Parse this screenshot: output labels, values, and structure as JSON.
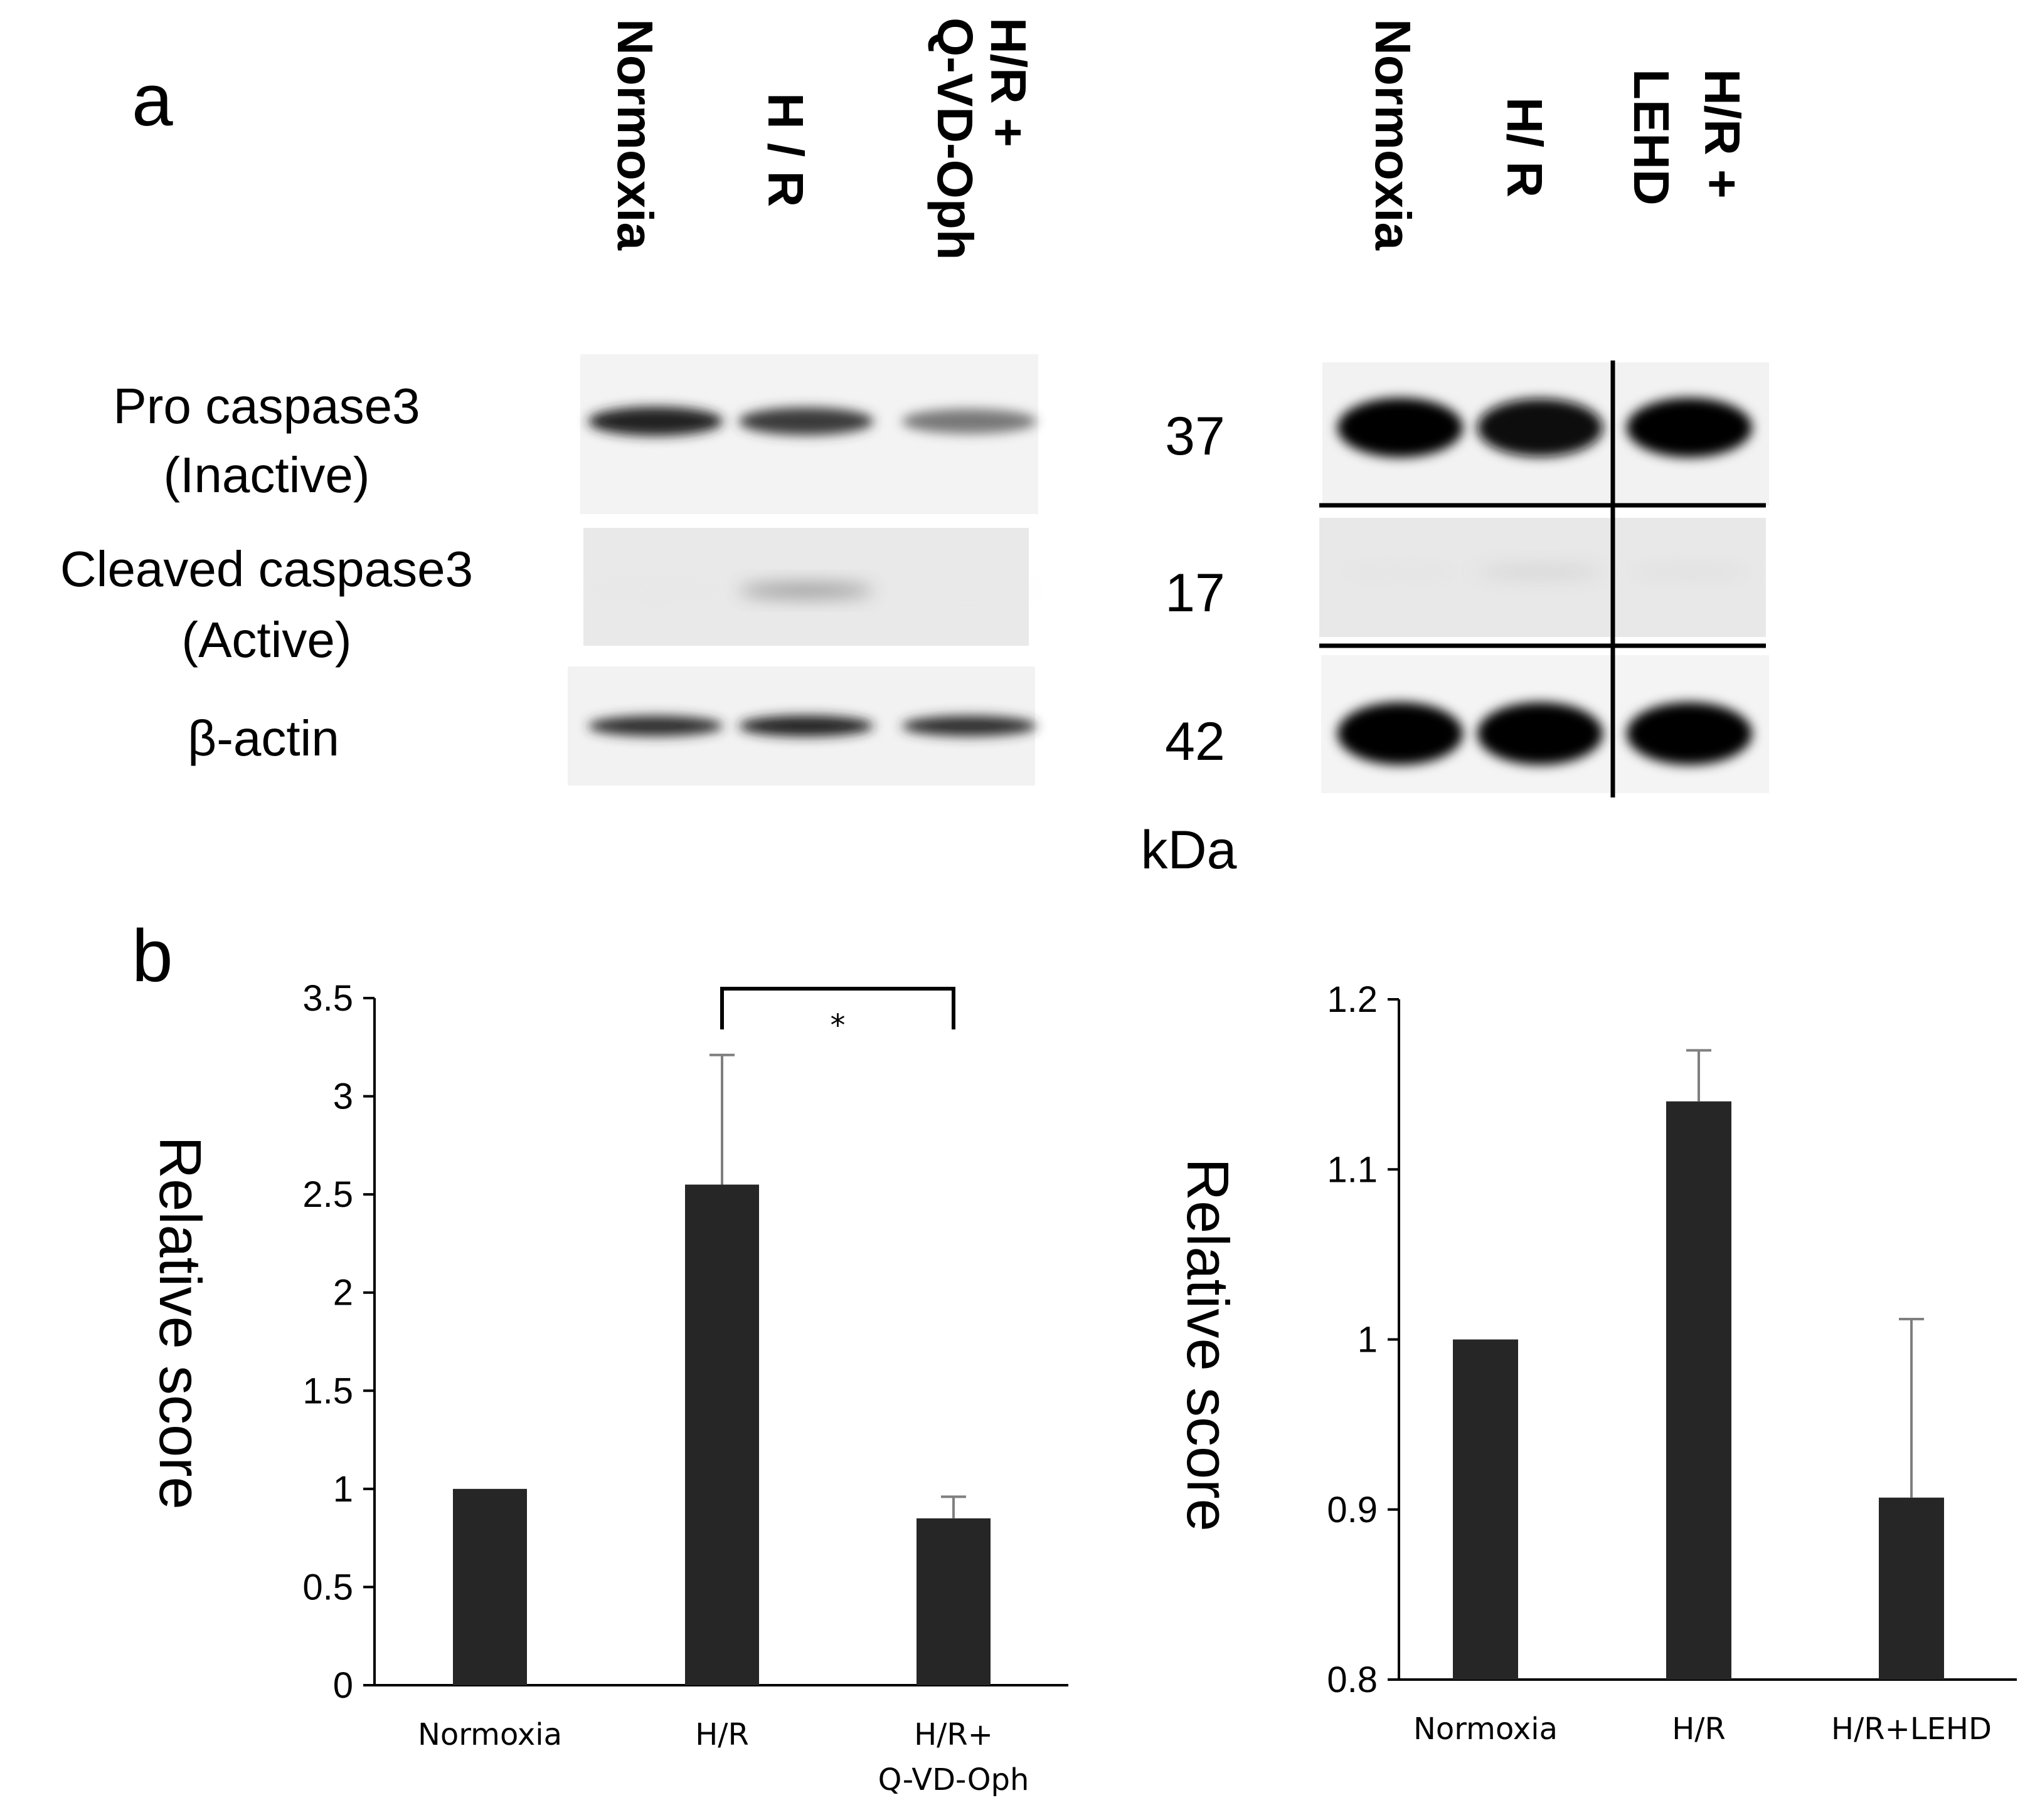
{
  "panel_a": {
    "label": "a",
    "left_blot": {
      "lanes": [
        "Normoxia",
        "H / R",
        "H/R +",
        "Q-VD-Oph"
      ],
      "rows": [
        {
          "label_lines": [
            "Pro caspase3",
            "(Inactive)"
          ],
          "bands": [
            0.85,
            0.75,
            0.55
          ]
        },
        {
          "label_lines": [
            "Cleaved caspase3",
            "(Active)"
          ],
          "bands": [
            0.02,
            0.45,
            0.01
          ]
        },
        {
          "label_lines": [
            "β-actin"
          ],
          "bands": [
            0.8,
            0.85,
            0.8
          ]
        }
      ]
    },
    "markers": [
      "37",
      "17",
      "42"
    ],
    "marker_unit": "kDa",
    "right_blot": {
      "lanes": [
        "Normoxia",
        "H/ R",
        "H/R +",
        "LEHD"
      ],
      "rows": [
        {
          "bands": [
            1.0,
            0.95,
            1.0
          ]
        },
        {
          "bands": [
            0.05,
            0.15,
            0.08
          ]
        },
        {
          "bands": [
            1.0,
            1.0,
            1.0
          ]
        }
      ]
    }
  },
  "panel_b": {
    "label": "b",
    "significance": "*"
  },
  "chart_data": [
    {
      "type": "bar",
      "categories": [
        "Normoxia",
        "H/R",
        "H/R+ Q-VD-Oph"
      ],
      "category_lines": [
        [
          "Normoxia"
        ],
        [
          "H/R"
        ],
        [
          "H/R+",
          "Q-VD-Oph"
        ]
      ],
      "values": [
        1.0,
        2.55,
        0.85
      ],
      "error": [
        0,
        0.66,
        0.11
      ],
      "ylabel": "Relative score",
      "ylim": [
        0,
        3.5
      ],
      "yticks": [
        "0",
        "0.5",
        "1",
        "1.5",
        "2",
        "2.5",
        "3",
        "3.5"
      ],
      "significance": {
        "between": [
          1,
          2
        ],
        "label": "*"
      },
      "bar_color": "#262626",
      "grid": false
    },
    {
      "type": "bar",
      "categories": [
        "Normoxia",
        "H/R",
        "H/R+LEHD"
      ],
      "category_lines": [
        [
          "Normoxia"
        ],
        [
          "H/R"
        ],
        [
          "H/R+LEHD"
        ]
      ],
      "values": [
        1.0,
        1.14,
        0.907
      ],
      "error": [
        0,
        0.03,
        0.105
      ],
      "ylabel": "Relative score",
      "ylim": [
        0.8,
        1.2
      ],
      "yticks": [
        "0.8",
        "0.9",
        "1",
        "1.1",
        "1.2"
      ],
      "bar_color": "#262626",
      "grid": false
    }
  ]
}
